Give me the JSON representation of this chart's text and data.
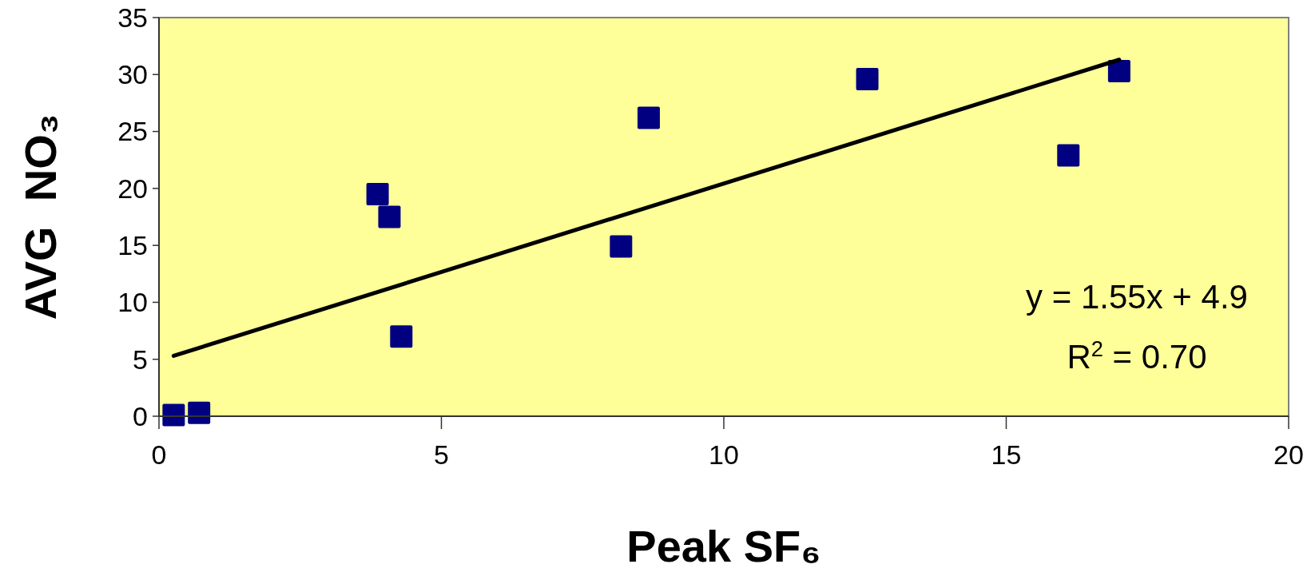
{
  "chart_data": {
    "type": "scatter",
    "xlabel": "Peak SF₆",
    "ylabel": "AVG  NO₃",
    "xlim": [
      0,
      20
    ],
    "xticks": [
      0,
      5,
      10,
      15,
      20
    ],
    "ylim": [
      0,
      35
    ],
    "yticks": [
      0,
      5,
      10,
      15,
      20,
      25,
      30,
      35
    ],
    "grid": false,
    "marker": "square",
    "series": [
      {
        "color": "#000080",
        "x": [
          0.26,
          0.71,
          3.87,
          4.08,
          4.29,
          8.18,
          8.67,
          12.54,
          16.1,
          17.0
        ],
        "values": [
          0.1,
          0.3,
          19.5,
          17.5,
          7.0,
          14.9,
          26.2,
          29.6,
          22.9,
          30.3
        ]
      },
      {
        "type": "line",
        "color": "#000000",
        "marker": "none",
        "line_style": "solid",
        "x": [
          0.26,
          17.0
        ],
        "values": [
          5.3,
          31.3
        ]
      }
    ],
    "annotations": [
      "y = 1.55x + 4.9",
      "R$^{2}$ = 0.70"
    ]
  }
}
